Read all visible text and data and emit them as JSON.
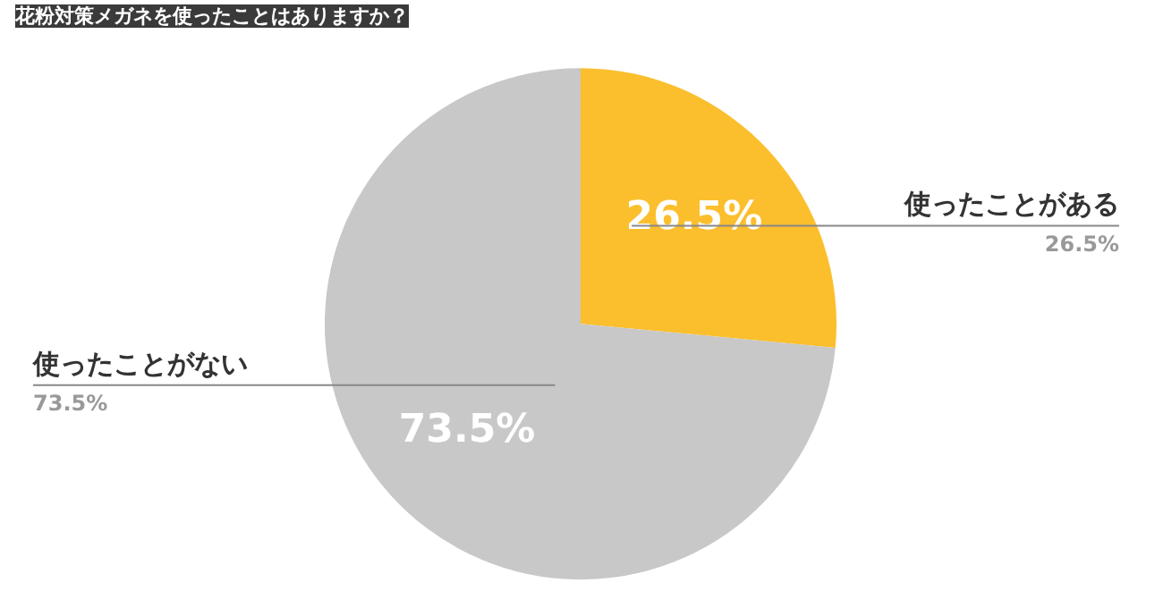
{
  "chart_data": {
    "type": "pie",
    "title": "花粉対策メガネを使ったことはありますか？",
    "categories": [
      "使ったことがある",
      "使ったことがない"
    ],
    "values": [
      26.5,
      73.5
    ],
    "value_labels": [
      "26.5%",
      "73.5%"
    ],
    "colors": [
      "#fbbf2d",
      "#c8c8c8"
    ]
  }
}
